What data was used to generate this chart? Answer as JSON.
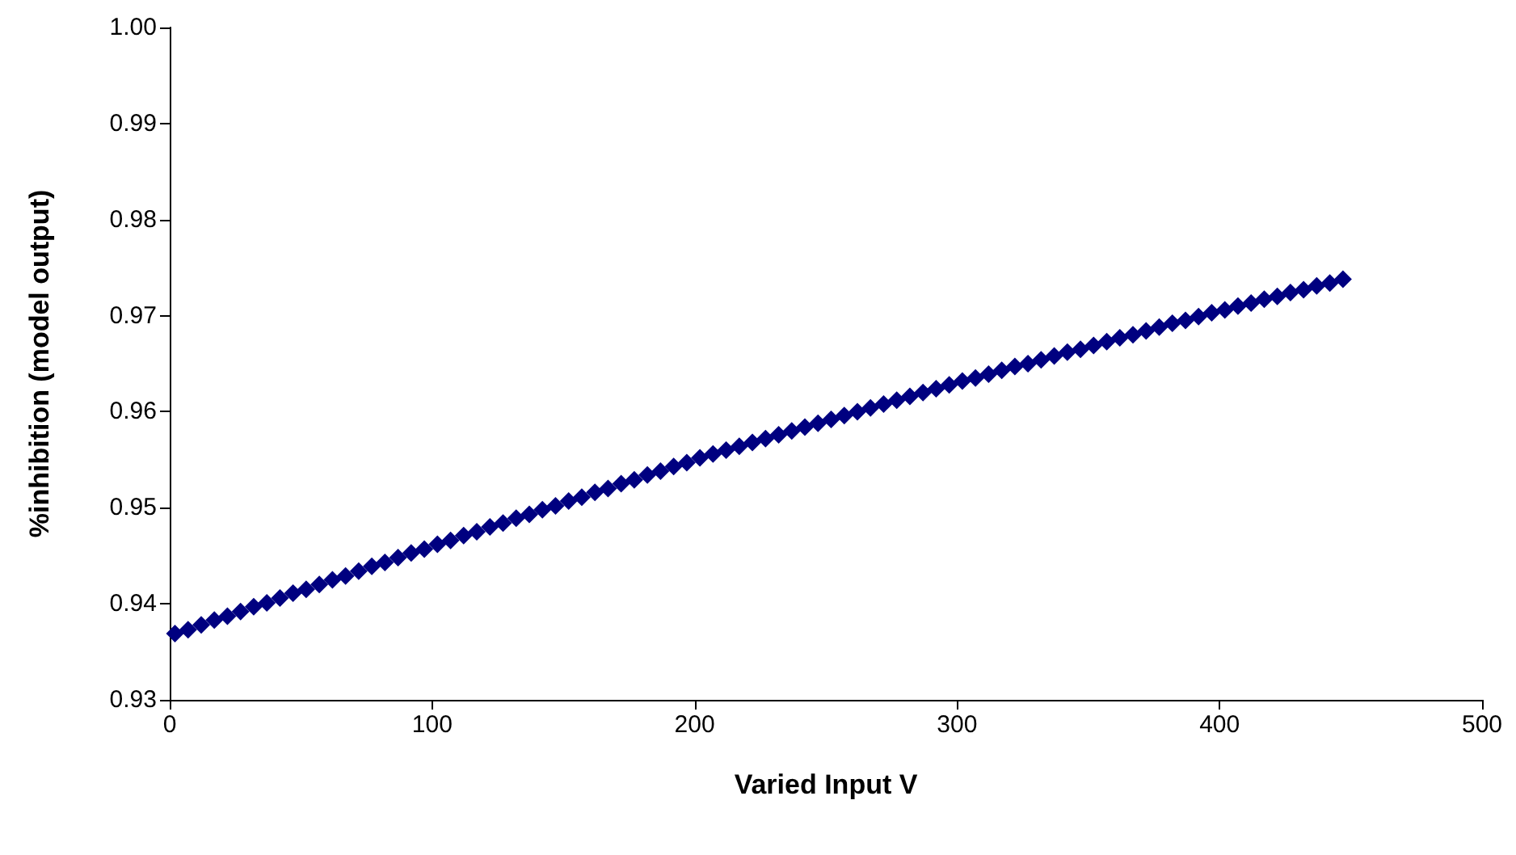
{
  "chart_data": {
    "type": "scatter",
    "xlabel": "Varied Input V",
    "ylabel": "%inhibition (model output)",
    "x": [
      2,
      7,
      12,
      17,
      22,
      27,
      32,
      37,
      42,
      47,
      52,
      57,
      62,
      67,
      72,
      77,
      82,
      87,
      92,
      97,
      102,
      107,
      112,
      117,
      122,
      127,
      132,
      137,
      142,
      147,
      152,
      157,
      162,
      167,
      172,
      177,
      182,
      187,
      192,
      197,
      202,
      207,
      212,
      217,
      222,
      227,
      232,
      237,
      242,
      247,
      252,
      257,
      262,
      267,
      272,
      277,
      282,
      287,
      292,
      297,
      302,
      307,
      312,
      317,
      322,
      327,
      332,
      337,
      342,
      347,
      352,
      357,
      362,
      367,
      372,
      377,
      382,
      387,
      392,
      397,
      402,
      407,
      412,
      417,
      422,
      427,
      432,
      437,
      442,
      447
    ],
    "series": [
      {
        "color": "#000080",
        "values": [
          0.9369,
          0.9373,
          0.9378,
          0.9383,
          0.9387,
          0.9392,
          0.9397,
          0.9401,
          0.9406,
          0.9411,
          0.9415,
          0.942,
          0.9425,
          0.9429,
          0.9434,
          0.9439,
          0.9443,
          0.9448,
          0.9453,
          0.9457,
          0.9462,
          0.9466,
          0.9471,
          0.9475,
          0.948,
          0.9484,
          0.9489,
          0.9493,
          0.9498,
          0.9502,
          0.9507,
          0.9511,
          0.9516,
          0.952,
          0.9525,
          0.9529,
          0.9534,
          0.9538,
          0.9543,
          0.9547,
          0.9552,
          0.9556,
          0.956,
          0.9564,
          0.9568,
          0.9572,
          0.9576,
          0.958,
          0.9584,
          0.9588,
          0.9592,
          0.9596,
          0.96,
          0.9604,
          0.9608,
          0.9612,
          0.9616,
          0.962,
          0.9624,
          0.9628,
          0.9632,
          0.9635,
          0.9639,
          0.9643,
          0.9647,
          0.965,
          0.9654,
          0.9658,
          0.9662,
          0.9665,
          0.9669,
          0.9673,
          0.9677,
          0.968,
          0.9684,
          0.9688,
          0.9692,
          0.9695,
          0.9699,
          0.9703,
          0.9706,
          0.971,
          0.9713,
          0.9717,
          0.972,
          0.9724,
          0.9727,
          0.9731,
          0.9734,
          0.9738
        ]
      }
    ],
    "xlim": [
      0,
      500
    ],
    "xticks": [
      0,
      100,
      200,
      300,
      400,
      500
    ],
    "ylim": [
      0.93,
      1.0
    ],
    "yticks": [
      0.93,
      0.94,
      0.95,
      0.96,
      0.97,
      0.98,
      0.99,
      {
        "value": 1.0,
        "label": "1.00"
      }
    ],
    "grid": false,
    "marker": "diamond"
  }
}
